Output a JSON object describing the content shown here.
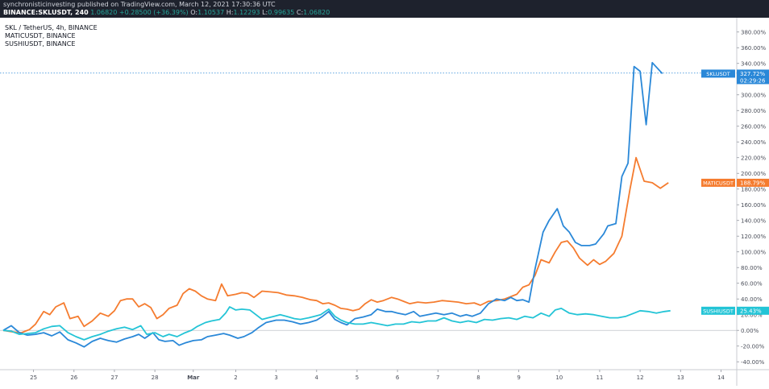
{
  "header": {
    "publisher_line": "synchronisticinvesting published on TradingView.com, March 12, 2021 17:30:36 UTC",
    "symbol": "BINANCE:SKLUSDT, 240",
    "ohlc": {
      "last": "1.06820",
      "change": "+0.28500 (+36.39%)",
      "o_label": "O:",
      "o": "1.10537",
      "h_label": "H:",
      "h": "1.12293",
      "l_label": "L:",
      "l": "0.99635",
      "c_label": "C:",
      "c": "1.06820"
    }
  },
  "legend": {
    "items": [
      {
        "label": "SKL / TetherUS, 4h, BINANCE"
      },
      {
        "label": "MATICUSDT, BINANCE"
      },
      {
        "label": "SUSHIUSDT, BINANCE"
      }
    ]
  },
  "chart_data": {
    "type": "line",
    "ylabel_unit": "%",
    "ylim": [
      -48,
      390
    ],
    "y_ticks": [
      "380.00%",
      "360.00%",
      "340.00%",
      "320.00%",
      "300.00%",
      "280.00%",
      "260.00%",
      "240.00%",
      "220.00%",
      "200.00%",
      "180.00%",
      "160.00%",
      "140.00%",
      "120.00%",
      "100.00%",
      "80.00%",
      "60.00%",
      "40.00%",
      "20.00%",
      "0.00%",
      "-20.00%",
      "-40.00%"
    ],
    "x_ticks": [
      {
        "label": "25",
        "x": 0.75
      },
      {
        "label": "26",
        "x": 1.75
      },
      {
        "label": "27",
        "x": 2.75
      },
      {
        "label": "28",
        "x": 3.75
      },
      {
        "label": "Mar",
        "x": 4.7
      },
      {
        "label": "2",
        "x": 5.75
      },
      {
        "label": "3",
        "x": 6.75
      },
      {
        "label": "4",
        "x": 7.75
      },
      {
        "label": "5",
        "x": 8.75
      },
      {
        "label": "6",
        "x": 9.75
      },
      {
        "label": "7",
        "x": 10.75
      },
      {
        "label": "8",
        "x": 11.75
      },
      {
        "label": "9",
        "x": 12.75
      },
      {
        "label": "10",
        "x": 13.75
      },
      {
        "label": "11",
        "x": 14.75
      },
      {
        "label": "12",
        "x": 15.75
      },
      {
        "label": "13",
        "x": 16.75
      },
      {
        "label": "14",
        "x": 17.75
      }
    ],
    "xlim": [
      0,
      18.1
    ],
    "series": [
      {
        "name": "MATICUSDT",
        "color": "#f57c2f",
        "last_label": "188.79%",
        "points": [
          [
            0,
            0
          ],
          [
            0.25,
            -2
          ],
          [
            0.45,
            -3
          ],
          [
            0.65,
            1
          ],
          [
            0.8,
            8
          ],
          [
            1.0,
            24
          ],
          [
            1.15,
            20
          ],
          [
            1.3,
            30
          ],
          [
            1.5,
            35
          ],
          [
            1.65,
            15
          ],
          [
            1.85,
            18
          ],
          [
            2.0,
            5
          ],
          [
            2.2,
            12
          ],
          [
            2.4,
            22
          ],
          [
            2.6,
            18
          ],
          [
            2.75,
            25
          ],
          [
            2.9,
            38
          ],
          [
            3.05,
            40
          ],
          [
            3.2,
            40
          ],
          [
            3.35,
            30
          ],
          [
            3.5,
            34
          ],
          [
            3.65,
            29
          ],
          [
            3.8,
            15
          ],
          [
            3.95,
            20
          ],
          [
            4.1,
            28
          ],
          [
            4.3,
            32
          ],
          [
            4.45,
            47
          ],
          [
            4.6,
            53
          ],
          [
            4.75,
            50
          ],
          [
            4.9,
            44
          ],
          [
            5.05,
            40
          ],
          [
            5.25,
            38
          ],
          [
            5.4,
            59
          ],
          [
            5.55,
            44
          ],
          [
            5.75,
            46
          ],
          [
            5.9,
            48
          ],
          [
            6.05,
            47
          ],
          [
            6.2,
            42
          ],
          [
            6.4,
            50
          ],
          [
            6.6,
            49
          ],
          [
            6.8,
            48
          ],
          [
            7.0,
            45
          ],
          [
            7.2,
            44
          ],
          [
            7.4,
            42
          ],
          [
            7.6,
            39
          ],
          [
            7.75,
            38
          ],
          [
            7.9,
            34
          ],
          [
            8.05,
            35
          ],
          [
            8.2,
            32
          ],
          [
            8.35,
            28
          ],
          [
            8.5,
            27
          ],
          [
            8.65,
            25
          ],
          [
            8.8,
            27
          ],
          [
            8.95,
            34
          ],
          [
            9.1,
            39
          ],
          [
            9.25,
            36
          ],
          [
            9.4,
            38
          ],
          [
            9.6,
            42
          ],
          [
            9.75,
            40
          ],
          [
            9.9,
            37
          ],
          [
            10.05,
            34
          ],
          [
            10.25,
            36
          ],
          [
            10.45,
            35
          ],
          [
            10.65,
            36
          ],
          [
            10.85,
            38
          ],
          [
            11.05,
            37
          ],
          [
            11.25,
            36
          ],
          [
            11.45,
            34
          ],
          [
            11.65,
            35
          ],
          [
            11.8,
            32
          ],
          [
            12.0,
            37
          ],
          [
            12.2,
            38
          ],
          [
            12.4,
            40
          ],
          [
            12.55,
            43
          ],
          [
            12.7,
            46
          ],
          [
            12.85,
            55
          ],
          [
            13.0,
            58
          ],
          [
            13.15,
            70
          ],
          [
            13.3,
            90
          ],
          [
            13.5,
            86
          ],
          [
            13.65,
            100
          ],
          [
            13.8,
            112
          ],
          [
            13.95,
            114
          ],
          [
            14.1,
            105
          ],
          [
            14.25,
            92
          ],
          [
            14.45,
            83
          ],
          [
            14.6,
            90
          ],
          [
            14.75,
            84
          ],
          [
            14.9,
            88
          ],
          [
            15.1,
            98
          ],
          [
            15.3,
            120
          ],
          [
            15.5,
            180
          ],
          [
            15.65,
            220
          ],
          [
            15.85,
            190
          ],
          [
            16.05,
            188
          ],
          [
            16.25,
            181
          ],
          [
            16.45,
            188
          ]
        ]
      },
      {
        "name": "SKLUSDT",
        "color": "#2a88d8",
        "last_label": "327.72%",
        "extra_label": "02:29:26",
        "points": [
          [
            0,
            0
          ],
          [
            0.2,
            6
          ],
          [
            0.4,
            -3
          ],
          [
            0.6,
            -6
          ],
          [
            0.8,
            -5
          ],
          [
            1.0,
            -3
          ],
          [
            1.2,
            -7
          ],
          [
            1.4,
            -2
          ],
          [
            1.6,
            -12
          ],
          [
            1.8,
            -16
          ],
          [
            2.0,
            -21
          ],
          [
            2.2,
            -14
          ],
          [
            2.4,
            -10
          ],
          [
            2.6,
            -13
          ],
          [
            2.8,
            -15
          ],
          [
            3.0,
            -11
          ],
          [
            3.2,
            -8
          ],
          [
            3.35,
            -5
          ],
          [
            3.5,
            -10
          ],
          [
            3.7,
            -3
          ],
          [
            3.85,
            -12
          ],
          [
            4.0,
            -14
          ],
          [
            4.2,
            -13
          ],
          [
            4.35,
            -19
          ],
          [
            4.5,
            -16
          ],
          [
            4.7,
            -13
          ],
          [
            4.9,
            -12
          ],
          [
            5.05,
            -8
          ],
          [
            5.25,
            -6
          ],
          [
            5.45,
            -4
          ],
          [
            5.6,
            -6
          ],
          [
            5.8,
            -10
          ],
          [
            5.95,
            -8
          ],
          [
            6.15,
            -3
          ],
          [
            6.3,
            3
          ],
          [
            6.5,
            10
          ],
          [
            6.75,
            13
          ],
          [
            6.95,
            13
          ],
          [
            7.15,
            11
          ],
          [
            7.35,
            8
          ],
          [
            7.55,
            10
          ],
          [
            7.75,
            13
          ],
          [
            7.9,
            18
          ],
          [
            8.05,
            24
          ],
          [
            8.2,
            14
          ],
          [
            8.35,
            10
          ],
          [
            8.5,
            7
          ],
          [
            8.7,
            15
          ],
          [
            8.9,
            17
          ],
          [
            9.1,
            20
          ],
          [
            9.25,
            27
          ],
          [
            9.45,
            24
          ],
          [
            9.6,
            24
          ],
          [
            9.75,
            22
          ],
          [
            9.95,
            20
          ],
          [
            10.15,
            24
          ],
          [
            10.3,
            18
          ],
          [
            10.5,
            20
          ],
          [
            10.7,
            22
          ],
          [
            10.9,
            20
          ],
          [
            11.1,
            22
          ],
          [
            11.3,
            18
          ],
          [
            11.45,
            20
          ],
          [
            11.6,
            18
          ],
          [
            11.8,
            22
          ],
          [
            12.0,
            34
          ],
          [
            12.2,
            40
          ],
          [
            12.4,
            38
          ],
          [
            12.55,
            42
          ],
          [
            12.7,
            38
          ],
          [
            12.85,
            39
          ],
          [
            13.0,
            36
          ],
          [
            13.15,
            78
          ],
          [
            13.35,
            125
          ],
          [
            13.5,
            140
          ],
          [
            13.7,
            155
          ],
          [
            13.85,
            133
          ],
          [
            14.0,
            125
          ],
          [
            14.15,
            112
          ],
          [
            14.3,
            108
          ],
          [
            14.5,
            108
          ],
          [
            14.65,
            110
          ],
          [
            14.85,
            123
          ],
          [
            14.95,
            133
          ],
          [
            15.15,
            136
          ],
          [
            15.3,
            196
          ],
          [
            15.45,
            213
          ],
          [
            15.6,
            336
          ],
          [
            15.75,
            330
          ],
          [
            15.9,
            262
          ],
          [
            16.05,
            341
          ],
          [
            16.3,
            327
          ]
        ]
      },
      {
        "name": "SUSHIUSDT",
        "color": "#23c4d6",
        "last_label": "25.43%",
        "points": [
          [
            0,
            0
          ],
          [
            0.2,
            -1
          ],
          [
            0.4,
            -5
          ],
          [
            0.6,
            -4
          ],
          [
            0.8,
            -3
          ],
          [
            1.0,
            2
          ],
          [
            1.2,
            5
          ],
          [
            1.4,
            6
          ],
          [
            1.6,
            -3
          ],
          [
            1.8,
            -8
          ],
          [
            2.0,
            -12
          ],
          [
            2.2,
            -8
          ],
          [
            2.4,
            -5
          ],
          [
            2.6,
            -1
          ],
          [
            2.8,
            2
          ],
          [
            3.0,
            4
          ],
          [
            3.2,
            1
          ],
          [
            3.4,
            6
          ],
          [
            3.55,
            -5
          ],
          [
            3.75,
            -3
          ],
          [
            3.95,
            -8
          ],
          [
            4.1,
            -5
          ],
          [
            4.3,
            -8
          ],
          [
            4.5,
            -3
          ],
          [
            4.65,
            0
          ],
          [
            4.8,
            5
          ],
          [
            5.0,
            10
          ],
          [
            5.15,
            12
          ],
          [
            5.35,
            14
          ],
          [
            5.5,
            22
          ],
          [
            5.6,
            30
          ],
          [
            5.75,
            26
          ],
          [
            5.9,
            27
          ],
          [
            6.1,
            26
          ],
          [
            6.25,
            20
          ],
          [
            6.4,
            14
          ],
          [
            6.55,
            16
          ],
          [
            6.7,
            18
          ],
          [
            6.85,
            20
          ],
          [
            7.0,
            18
          ],
          [
            7.2,
            15
          ],
          [
            7.35,
            14
          ],
          [
            7.55,
            16
          ],
          [
            7.7,
            18
          ],
          [
            7.85,
            20
          ],
          [
            8.05,
            27
          ],
          [
            8.2,
            18
          ],
          [
            8.35,
            13
          ],
          [
            8.5,
            10
          ],
          [
            8.7,
            8
          ],
          [
            8.9,
            8
          ],
          [
            9.1,
            10
          ],
          [
            9.3,
            8
          ],
          [
            9.5,
            6
          ],
          [
            9.7,
            8
          ],
          [
            9.9,
            8
          ],
          [
            10.1,
            11
          ],
          [
            10.3,
            10
          ],
          [
            10.5,
            12
          ],
          [
            10.7,
            12
          ],
          [
            10.9,
            16
          ],
          [
            11.1,
            12
          ],
          [
            11.3,
            10
          ],
          [
            11.5,
            12
          ],
          [
            11.7,
            10
          ],
          [
            11.9,
            14
          ],
          [
            12.1,
            13
          ],
          [
            12.3,
            15
          ],
          [
            12.5,
            16
          ],
          [
            12.7,
            14
          ],
          [
            12.9,
            18
          ],
          [
            13.1,
            16
          ],
          [
            13.3,
            22
          ],
          [
            13.5,
            18
          ],
          [
            13.65,
            26
          ],
          [
            13.8,
            28
          ],
          [
            14.0,
            22
          ],
          [
            14.2,
            20
          ],
          [
            14.4,
            21
          ],
          [
            14.6,
            20
          ],
          [
            14.8,
            18
          ],
          [
            15.0,
            16
          ],
          [
            15.2,
            16
          ],
          [
            15.4,
            18
          ],
          [
            15.6,
            22
          ],
          [
            15.75,
            25
          ],
          [
            15.95,
            24
          ],
          [
            16.15,
            22
          ],
          [
            16.35,
            24
          ],
          [
            16.5,
            25
          ]
        ]
      }
    ],
    "price_line_value": 327.72,
    "grid": false
  }
}
